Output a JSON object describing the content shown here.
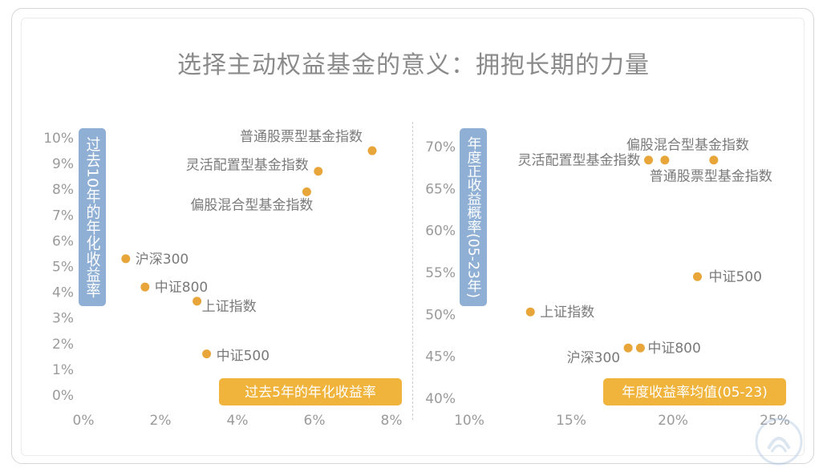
{
  "page": {
    "title": "选择主动权益基金的意义：拥抱长期的力量"
  },
  "colors": {
    "point": "#E8A63A",
    "axis_text": "#9a9a9a",
    "label_text": "#7a7a7a",
    "ylabel_bg": "#8FAFD5",
    "xlabel_bg": "#F0B43C"
  },
  "chart_data": [
    {
      "type": "scatter",
      "xlabel": "过去5年的年化收益率",
      "ylabel": "过去10年的年化收益率",
      "xlim": [
        0,
        8
      ],
      "ylim": [
        0,
        10
      ],
      "x_ticks": [
        "0%",
        "2%",
        "4%",
        "6%",
        "8%"
      ],
      "y_ticks": [
        "0%",
        "1%",
        "2%",
        "3%",
        "4%",
        "5%",
        "6%",
        "7%",
        "8%",
        "9%",
        "10%"
      ],
      "points": [
        {
          "label": "普通股票型基金指数",
          "x": 7.5,
          "y": 9.5
        },
        {
          "label": "灵活配置型基金指数",
          "x": 6.1,
          "y": 8.7
        },
        {
          "label": "偏股混合型基金指数",
          "x": 5.8,
          "y": 7.9
        },
        {
          "label": "沪深300",
          "x": 1.1,
          "y": 5.3
        },
        {
          "label": "中证800",
          "x": 1.6,
          "y": 4.2
        },
        {
          "label": "上证指数",
          "x": 2.95,
          "y": 3.65
        },
        {
          "label": "中证500",
          "x": 3.2,
          "y": 1.6
        }
      ]
    },
    {
      "type": "scatter",
      "xlabel": "年度收益率均值(05-23)",
      "ylabel": "年度正收益概率(05-23年)",
      "xlim": [
        10,
        25
      ],
      "ylim": [
        40,
        70
      ],
      "x_ticks": [
        "10%",
        "15%",
        "20%",
        "25%"
      ],
      "y_ticks": [
        "40%",
        "45%",
        "50%",
        "55%",
        "60%",
        "65%",
        "70%"
      ],
      "points": [
        {
          "label": "偏股混合型基金指数",
          "x": 19.6,
          "y": 68.4
        },
        {
          "label": "灵活配置型基金指数",
          "x": 18.8,
          "y": 68.4
        },
        {
          "label": "普通股票型基金指数",
          "x": 22.0,
          "y": 68.4
        },
        {
          "label": "中证500",
          "x": 21.2,
          "y": 54.5
        },
        {
          "label": "上证指数",
          "x": 13.0,
          "y": 50.3
        },
        {
          "label": "沪深300",
          "x": 17.8,
          "y": 46.0
        },
        {
          "label": "中证800",
          "x": 18.4,
          "y": 46.0
        }
      ]
    }
  ]
}
